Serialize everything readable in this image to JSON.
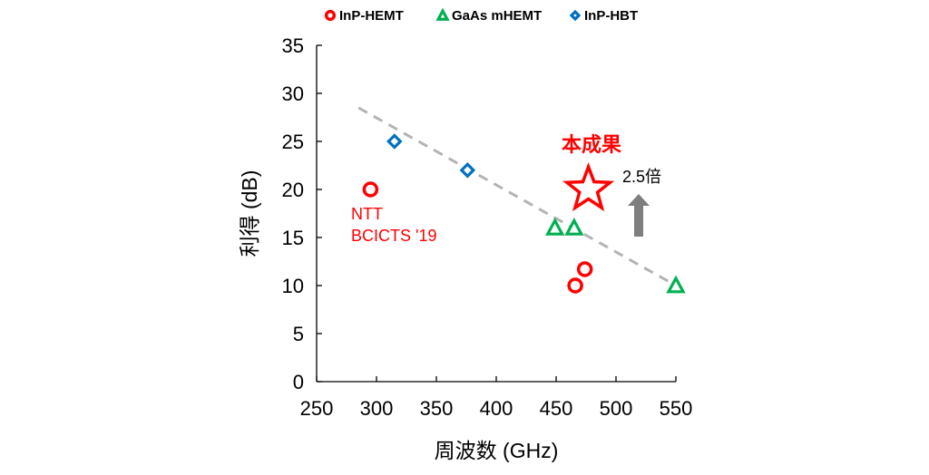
{
  "chart_data": {
    "type": "scatter",
    "xlabel": "周波数 (GHz)",
    "ylabel": "利得 (dB)",
    "xlim": [
      250,
      550
    ],
    "ylim": [
      0,
      35
    ],
    "xticks": [
      250,
      300,
      350,
      400,
      450,
      500,
      550
    ],
    "yticks": [
      0,
      5,
      10,
      15,
      20,
      25,
      30,
      35
    ],
    "grid": false,
    "legend_position": "top",
    "series": [
      {
        "name": "InP-HEMT",
        "marker": "circle",
        "color": "#ff0000",
        "points": [
          {
            "x": 295,
            "y": 20
          },
          {
            "x": 466,
            "y": 10
          },
          {
            "x": 474,
            "y": 11.7
          }
        ]
      },
      {
        "name": "GaAs mHEMT",
        "marker": "triangle",
        "color": "#00b050",
        "points": [
          {
            "x": 449,
            "y": 16
          },
          {
            "x": 465,
            "y": 16
          },
          {
            "x": 550,
            "y": 10
          }
        ]
      },
      {
        "name": "InP-HBT",
        "marker": "diamond",
        "color": "#0070c0",
        "points": [
          {
            "x": 315,
            "y": 25
          },
          {
            "x": 376,
            "y": 22
          }
        ]
      }
    ],
    "highlight": {
      "label": "本成果",
      "x": 477,
      "y": 20,
      "marker": "star",
      "color": "#ff0000"
    },
    "trendline": {
      "style": "dashed",
      "color": "#b4b4b4",
      "from": {
        "x": 285,
        "y": 28.5
      },
      "to": {
        "x": 550,
        "y": 10
      }
    },
    "annotations": {
      "ntt_line1": "NTT",
      "ntt_line2": "BCICTS '19",
      "gain_label": "2.5倍",
      "arrow_color": "#7f7f7f"
    }
  }
}
